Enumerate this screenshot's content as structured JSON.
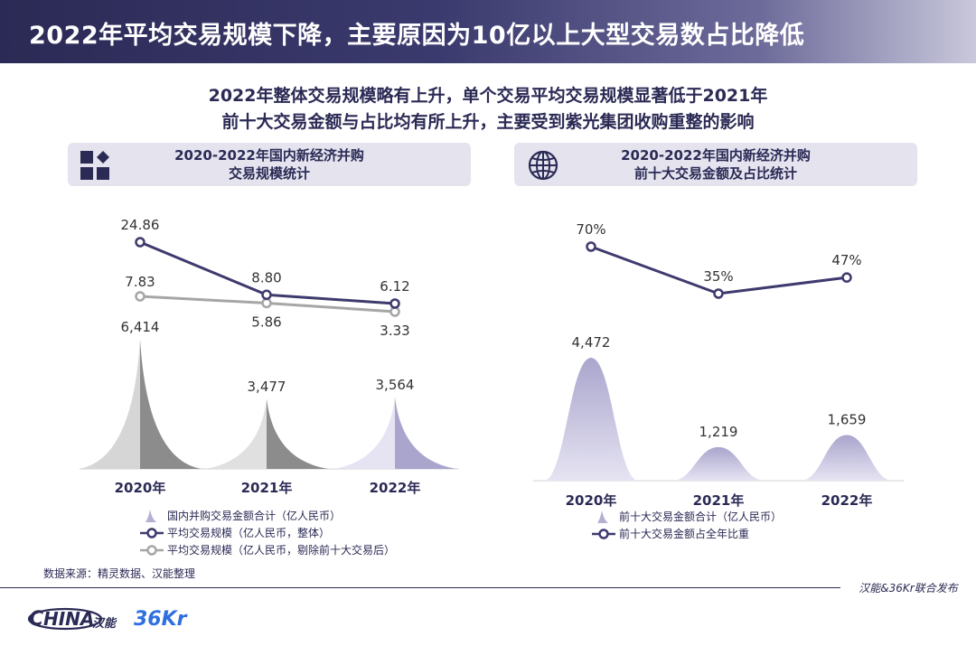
{
  "title": "2022年平均交易规模下降，主要原因为10亿以上大型交易数占比降低",
  "subtitle": {
    "line1": "2022年整体交易规模略有上升，单个交易平均交易规模显著低于2021年",
    "line2": "前十大交易金额与占比均有所上升，主要受到紫光集团收购重整的影响"
  },
  "left_panel": {
    "header_line1": "2020-2022年国内新经济并购",
    "header_line2": "交易规模统计",
    "icon": "squares-diamond-icon",
    "legend": [
      "国内并购交易金额合计（亿人民币）",
      "平均交易规模（亿人民币，整体）",
      "平均交易规模（亿人民币，剔除前十大交易后）"
    ]
  },
  "right_panel": {
    "header_line1": "2020-2022年国内新经济并购",
    "header_line2": "前十大交易金额及占比统计",
    "icon": "globe-icon",
    "legend": [
      "前十大交易金额合计（亿人民币）",
      "前十大交易金额占全年比重"
    ]
  },
  "source": "数据来源：精灵数据、汉能整理",
  "footer_tag": "汉能&36Kr联合发布",
  "logos": {
    "hina_text": "HINA",
    "hina_chinese": "汉能",
    "kr_text": "36Kr"
  },
  "colors": {
    "dark_navy": "#2b2a55",
    "line_navy": "#3e3a6e",
    "gray_line": "#a6a6a6",
    "lavender": "#b3b0d2",
    "peak_gray": "#8c8c8c"
  },
  "chart_data": [
    {
      "type": "area",
      "title": "2020-2022年国内新经济并购交易规模统计",
      "categories": [
        "2020年",
        "2021年",
        "2022年"
      ],
      "series": [
        {
          "name": "国内并购交易金额合计（亿人民币）",
          "values": [
            6414,
            3477,
            3564
          ],
          "labels": [
            "6,414",
            "3,477",
            "3,564"
          ]
        },
        {
          "name": "平均交易规模（亿人民币，整体）",
          "type": "line",
          "values": [
            24.86,
            8.8,
            6.12
          ],
          "labels": [
            "24.86",
            "8.80",
            "6.12"
          ]
        },
        {
          "name": "平均交易规模（亿人民币，剔除前十大交易后）",
          "type": "line",
          "values": [
            7.83,
            5.86,
            3.33
          ],
          "labels": [
            "7.83",
            "5.86",
            "3.33"
          ]
        }
      ]
    },
    {
      "type": "area",
      "title": "2020-2022年国内新经济并购前十大交易金额及占比统计",
      "categories": [
        "2020年",
        "2021年",
        "2022年"
      ],
      "series": [
        {
          "name": "前十大交易金额合计（亿人民币）",
          "values": [
            4472,
            1219,
            1659
          ],
          "labels": [
            "4,472",
            "1,219",
            "1,659"
          ]
        },
        {
          "name": "前十大交易金额占全年比重",
          "type": "line",
          "values": [
            70,
            35,
            47
          ],
          "labels": [
            "70%",
            "35%",
            "47%"
          ]
        }
      ]
    }
  ]
}
